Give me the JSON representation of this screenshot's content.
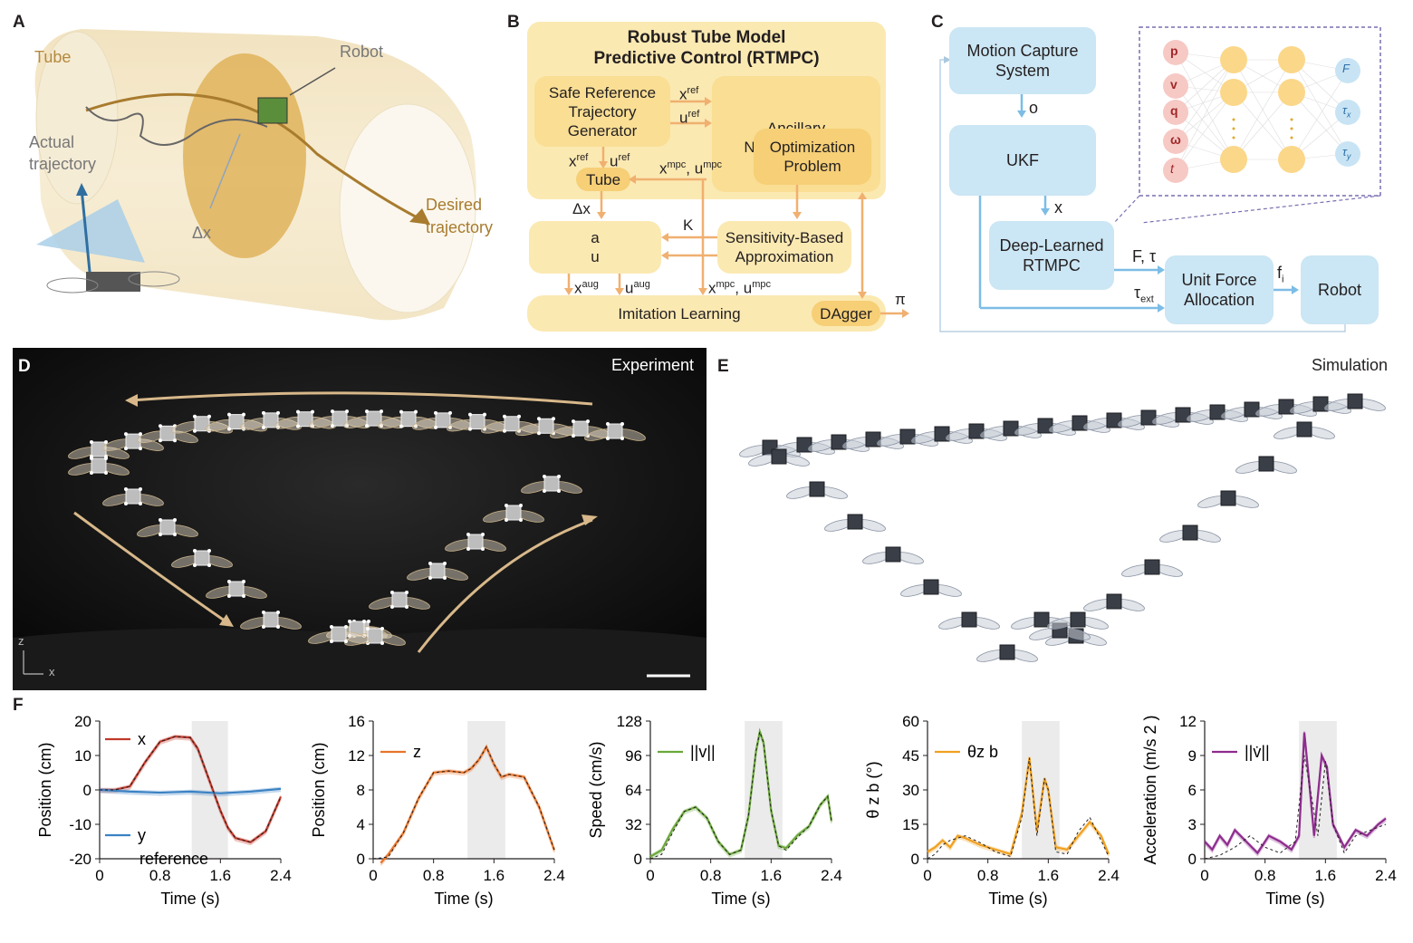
{
  "panels": {
    "A": "A",
    "B": "B",
    "C": "C",
    "D": "D",
    "E": "E",
    "F": "F"
  },
  "panelA": {
    "tube": "Tube",
    "robot": "Robot",
    "actual1": "Actual",
    "actual2": "trajectory",
    "desired1": "Desired",
    "desired2": "trajectory",
    "dx": "Δx"
  },
  "panelB": {
    "title1": "Robust Tube Model",
    "title2": "Predictive Control (RTMPC)",
    "safe": [
      "Safe Reference",
      "Trajectory",
      "Generator"
    ],
    "anc": [
      "Ancillary",
      "Nonlinear MPC"
    ],
    "opt": [
      "Optimization",
      "Problem"
    ],
    "tube": "Tube",
    "sens": [
      "Sensitivity-Based",
      "Approximation"
    ],
    "aug": "aug",
    "il": "Imitation Learning",
    "dagger": "DAgger",
    "xref": "x",
    "uref": "u",
    "ref": "ref",
    "xref2": "x",
    "uref2": "u",
    "xmpc": "x",
    "umpc": "u",
    "mpc": "mpc",
    "comma": ", ",
    "dx": "Δx",
    "K": "K",
    "xaug": "x",
    "uaug": "u",
    "pi": "π"
  },
  "panelC": {
    "mocap": [
      "Motion Capture",
      "System"
    ],
    "ukf": "UKF",
    "dl": [
      "Deep-Learned",
      "RTMPC"
    ],
    "unit": [
      "Unit Force",
      "Allocation"
    ],
    "robot": "Robot",
    "o": "o",
    "x": "x",
    "Ft": "F, τ",
    "fi": "f",
    "fi_sub": "i",
    "text": "τ",
    "text_sub": "ext",
    "nn_inputs": [
      "p",
      "v",
      "q",
      "ω",
      "t"
    ],
    "nn_outputs": [
      "F",
      "τ",
      "τ"
    ],
    "nn_out_subs": [
      "",
      "x",
      "y"
    ]
  },
  "panelD": {
    "label": "Experiment",
    "z": "z",
    "x": "x"
  },
  "panelE": {
    "label": "Simulation"
  },
  "colors": {
    "x": "#c0392b",
    "y": "#3b82c4",
    "z": "#e8742b",
    "v": "#6aa83a",
    "theta": "#f0a020",
    "acc": "#8e2c8e",
    "shade": "#ebebeb"
  },
  "chart_data": [
    {
      "type": "line",
      "ylabel": "Position (cm)",
      "xlabel": "Time (s)",
      "xlim": [
        0,
        2.4
      ],
      "ylim": [
        -20,
        20
      ],
      "xticks": [
        "0",
        "0.8",
        "1.6",
        "2.4"
      ],
      "yticks": [
        "20",
        "10",
        "0",
        "-10",
        "-20"
      ],
      "shade": [
        1.22,
        1.7
      ],
      "legend": [
        "x",
        "y",
        "reference"
      ],
      "series": [
        {
          "name": "x",
          "x": [
            0,
            0.2,
            0.4,
            0.6,
            0.8,
            1.0,
            1.2,
            1.3,
            1.4,
            1.5,
            1.6,
            1.7,
            1.8,
            2.0,
            2.2,
            2.4
          ],
          "values": [
            0,
            0,
            1,
            8,
            14,
            15.5,
            15.2,
            12,
            6,
            0,
            -6,
            -11,
            -14,
            -15.2,
            -12,
            -2
          ]
        },
        {
          "name": "y",
          "x": [
            0,
            0.4,
            0.8,
            1.2,
            1.6,
            2.0,
            2.4
          ],
          "values": [
            0,
            -0.5,
            -0.8,
            -0.5,
            -1,
            -0.5,
            0.3
          ]
        },
        {
          "name": "reference",
          "x": [
            0,
            0.2,
            0.4,
            0.6,
            0.8,
            1.0,
            1.2,
            1.3,
            1.4,
            1.5,
            1.6,
            1.7,
            1.8,
            2.0,
            2.2,
            2.4
          ],
          "values": [
            0,
            0,
            1,
            8,
            14,
            15.5,
            15.2,
            12,
            6,
            0,
            -6,
            -11,
            -14,
            -15.2,
            -12,
            -2
          ]
        }
      ]
    },
    {
      "type": "line",
      "ylabel": "Position (cm)",
      "xlabel": "Time (s)",
      "xlim": [
        0,
        2.4
      ],
      "ylim": [
        0,
        16
      ],
      "xticks": [
        "0",
        "0.8",
        "1.6",
        "2.4"
      ],
      "yticks": [
        "16",
        "12",
        "8",
        "4",
        "0"
      ],
      "shade": [
        1.25,
        1.75
      ],
      "legend": [
        "z"
      ],
      "series": [
        {
          "name": "z",
          "x": [
            0.1,
            0.2,
            0.4,
            0.6,
            0.8,
            1.0,
            1.2,
            1.3,
            1.4,
            1.5,
            1.6,
            1.7,
            1.8,
            2.0,
            2.2,
            2.4
          ],
          "values": [
            -0.5,
            0.5,
            3,
            7,
            10,
            10.2,
            10,
            10.5,
            11.5,
            13,
            11,
            9.5,
            9.8,
            9.5,
            6,
            1
          ]
        },
        {
          "name": "reference",
          "x": [
            0,
            0.2,
            0.4,
            0.6,
            0.8,
            1.0,
            1.2,
            1.3,
            1.4,
            1.5,
            1.6,
            1.7,
            1.8,
            2.0,
            2.2,
            2.4
          ],
          "values": [
            0,
            0.2,
            3,
            7,
            10,
            10.2,
            10,
            10.5,
            11.5,
            13,
            11,
            9.5,
            9.8,
            9.5,
            6,
            1
          ]
        }
      ]
    },
    {
      "type": "line",
      "ylabel": "Speed (cm/s)",
      "xlabel": "Time (s)",
      "xlim": [
        0,
        2.4
      ],
      "ylim": [
        0,
        128
      ],
      "xticks": [
        "0",
        "0.8",
        "1.6",
        "2.4"
      ],
      "yticks": [
        "128",
        "96",
        "64",
        "32",
        "0"
      ],
      "shade": [
        1.25,
        1.75
      ],
      "legend": [
        "||v||"
      ],
      "series": [
        {
          "name": "||v||",
          "x": [
            0,
            0.15,
            0.3,
            0.45,
            0.6,
            0.75,
            0.9,
            1.05,
            1.2,
            1.3,
            1.4,
            1.45,
            1.5,
            1.6,
            1.7,
            1.8,
            1.95,
            2.1,
            2.25,
            2.35,
            2.4
          ],
          "values": [
            2,
            8,
            28,
            44,
            48,
            38,
            16,
            4,
            8,
            40,
            100,
            118,
            108,
            45,
            12,
            10,
            22,
            30,
            50,
            58,
            35
          ]
        },
        {
          "name": "reference",
          "x": [
            0,
            0.15,
            0.3,
            0.45,
            0.6,
            0.75,
            0.9,
            1.05,
            1.2,
            1.3,
            1.4,
            1.45,
            1.5,
            1.6,
            1.7,
            1.8,
            1.95,
            2.1,
            2.25,
            2.35,
            2.4
          ],
          "values": [
            0,
            4,
            25,
            44,
            48,
            38,
            16,
            4,
            8,
            40,
            100,
            118,
            108,
            45,
            12,
            8,
            20,
            30,
            50,
            58,
            35
          ]
        }
      ]
    },
    {
      "type": "line",
      "ylabel": "θ z b (°)",
      "xlabel": "Time (s)",
      "xlim": [
        0,
        2.4
      ],
      "ylim": [
        0,
        60
      ],
      "xticks": [
        "0",
        "0.8",
        "1.6",
        "2.4"
      ],
      "yticks": [
        "60",
        "45",
        "30",
        "15",
        "0"
      ],
      "shade": [
        1.25,
        1.75
      ],
      "legend": [
        "θz b"
      ],
      "series": [
        {
          "name": "θz b",
          "x": [
            0,
            0.1,
            0.2,
            0.3,
            0.4,
            0.5,
            0.7,
            0.9,
            1.1,
            1.25,
            1.35,
            1.45,
            1.55,
            1.6,
            1.7,
            1.85,
            2.0,
            2.15,
            2.3,
            2.4
          ],
          "values": [
            3,
            5,
            8,
            5,
            10,
            9,
            6,
            4,
            2,
            20,
            44,
            12,
            35,
            30,
            5,
            4,
            10,
            16,
            10,
            2
          ]
        },
        {
          "name": "reference",
          "x": [
            0,
            0.1,
            0.2,
            0.3,
            0.4,
            0.5,
            0.7,
            0.9,
            1.1,
            1.25,
            1.35,
            1.45,
            1.55,
            1.6,
            1.7,
            1.85,
            2.0,
            2.15,
            2.3,
            2.4
          ],
          "values": [
            0,
            2,
            6,
            8,
            9,
            10,
            7,
            3,
            1,
            18,
            44,
            10,
            35,
            30,
            3,
            2,
            12,
            18,
            8,
            1
          ]
        }
      ]
    },
    {
      "type": "line",
      "ylabel": "Acceleration (m/s 2 )",
      "xlabel": "Time (s)",
      "xlim": [
        0,
        2.4
      ],
      "ylim": [
        0,
        12
      ],
      "xticks": [
        "0",
        "0.8",
        "1.6",
        "2.4"
      ],
      "yticks": [
        "12",
        "9",
        "6",
        "3",
        "0"
      ],
      "shade": [
        1.25,
        1.75
      ],
      "legend": [
        "||v̇||"
      ],
      "series": [
        {
          "name": "||v̇||",
          "x": [
            0,
            0.1,
            0.2,
            0.3,
            0.4,
            0.55,
            0.7,
            0.85,
            1.0,
            1.15,
            1.25,
            1.32,
            1.38,
            1.45,
            1.55,
            1.62,
            1.7,
            1.85,
            2.0,
            2.15,
            2.3,
            2.4
          ],
          "values": [
            1.5,
            0.8,
            2,
            1.2,
            2.5,
            1.5,
            0.5,
            2,
            1.5,
            0.8,
            2,
            11,
            7,
            2,
            9,
            8,
            3,
            1,
            2.5,
            2,
            3,
            3.5
          ]
        },
        {
          "name": "reference",
          "x": [
            0,
            0.2,
            0.4,
            0.6,
            0.8,
            1.0,
            1.2,
            1.32,
            1.4,
            1.5,
            1.6,
            1.7,
            1.85,
            2.0,
            2.2,
            2.4
          ],
          "values": [
            0,
            0.3,
            1,
            2,
            1,
            0.5,
            1.5,
            9,
            6,
            2,
            8.5,
            3,
            0.5,
            2,
            2.5,
            3
          ]
        }
      ]
    }
  ]
}
